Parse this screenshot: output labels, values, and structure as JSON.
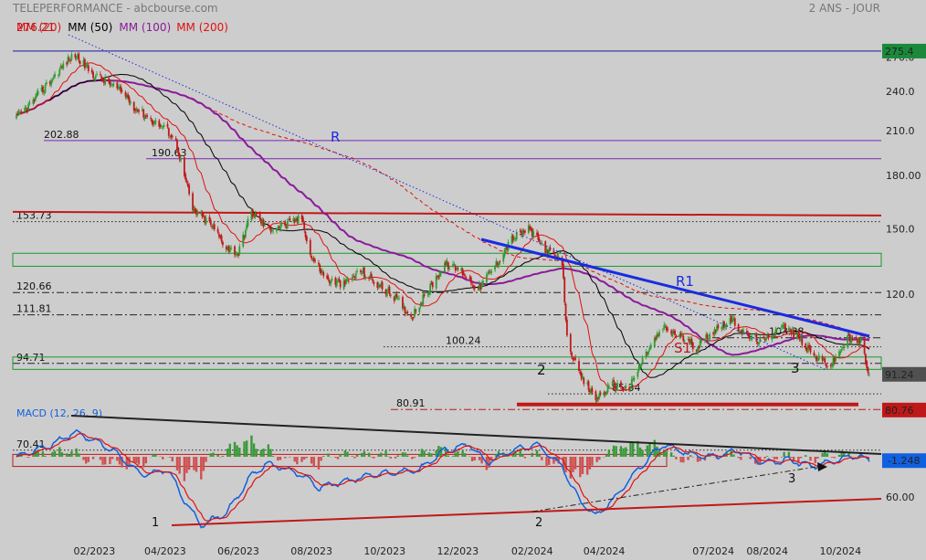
{
  "header": {
    "title": "TELEPERFORMANCE - abcbourse.com",
    "period": "2 ANS - JOUR",
    "legend": [
      {
        "label": "MM (20)",
        "color": "#e01010"
      },
      {
        "label": "MM (50)",
        "color": "#000000"
      },
      {
        "label": "MM (100)",
        "color": "#8a1a9a"
      },
      {
        "label": "MM (200)",
        "color": "#e01010"
      }
    ],
    "overlap_label": "276.21"
  },
  "colors": {
    "background": "#cdcdcd",
    "candle_up": "#2e9c2e",
    "candle_down": "#c01818",
    "ma20": "#e01010",
    "ma50": "#000000",
    "ma100": "#8a1a9a",
    "ma200": "#e01010",
    "trend": "#1a2be0",
    "support": "#c01818",
    "macd": "#1060e0",
    "signal": "#e01010",
    "hist_pos": "#3a9a3a",
    "hist_neg": "#d05050"
  },
  "chart_data": [
    {
      "type": "candlestick",
      "title": "TELEPERFORMANCE - abcbourse.com",
      "ylabel": "",
      "ylim": [
        60,
        280
      ],
      "yticks": [
        60,
        120,
        150,
        180,
        210,
        240,
        270
      ],
      "ytick_labels": [
        "60.00",
        "120.0",
        "150.0",
        "180.00",
        "210.0",
        "240.0",
        "270.0"
      ],
      "xticks": [
        "02/2023",
        "04/2023",
        "06/2023",
        "08/2023",
        "10/2023",
        "12/2023",
        "02/2024",
        "04/2024",
        "07/2024",
        "08/2024",
        "10/2024"
      ],
      "price_anchors": [
        [
          "2022-11-28",
          219
        ],
        [
          "2022-12-12",
          232
        ],
        [
          "2022-12-28",
          251
        ],
        [
          "2023-01-09",
          266
        ],
        [
          "2023-01-16",
          272
        ],
        [
          "2023-01-30",
          255
        ],
        [
          "2023-02-13",
          247
        ],
        [
          "2023-02-27",
          237
        ],
        [
          "2023-03-06",
          228
        ],
        [
          "2023-03-20",
          218
        ],
        [
          "2023-04-03",
          210
        ],
        [
          "2023-04-10",
          202
        ],
        [
          "2023-04-17",
          180
        ],
        [
          "2023-04-24",
          160
        ],
        [
          "2023-05-08",
          153
        ],
        [
          "2023-05-22",
          141
        ],
        [
          "2023-06-01",
          138
        ],
        [
          "2023-06-12",
          159
        ],
        [
          "2023-06-26",
          150
        ],
        [
          "2023-07-10",
          152
        ],
        [
          "2023-07-24",
          156
        ],
        [
          "2023-07-31",
          137
        ],
        [
          "2023-08-14",
          126
        ],
        [
          "2023-08-28",
          124
        ],
        [
          "2023-09-11",
          130
        ],
        [
          "2023-09-25",
          124
        ],
        [
          "2023-10-09",
          119
        ],
        [
          "2023-10-23",
          111
        ],
        [
          "2023-11-06",
          121
        ],
        [
          "2023-11-20",
          133
        ],
        [
          "2023-12-04",
          130
        ],
        [
          "2023-12-18",
          122
        ],
        [
          "2024-01-02",
          133
        ],
        [
          "2024-01-15",
          145
        ],
        [
          "2024-01-29",
          150
        ],
        [
          "2024-02-12",
          140
        ],
        [
          "2024-02-26",
          133
        ],
        [
          "2024-03-01",
          103
        ],
        [
          "2024-03-11",
          91
        ],
        [
          "2024-03-25",
          84
        ],
        [
          "2024-04-08",
          88
        ],
        [
          "2024-04-22",
          87
        ],
        [
          "2024-05-06",
          98
        ],
        [
          "2024-05-20",
          107
        ],
        [
          "2024-06-03",
          104
        ],
        [
          "2024-06-17",
          100
        ],
        [
          "2024-07-01",
          106
        ],
        [
          "2024-07-15",
          110
        ],
        [
          "2024-07-29",
          104
        ],
        [
          "2024-08-12",
          102
        ],
        [
          "2024-08-26",
          108
        ],
        [
          "2024-09-09",
          104
        ],
        [
          "2024-09-23",
          97
        ],
        [
          "2024-10-07",
          94
        ],
        [
          "2024-10-21",
          103
        ],
        [
          "2024-11-01",
          102
        ],
        [
          "2024-11-08",
          91.24
        ]
      ],
      "horizontal_levels": [
        {
          "label": "",
          "value": 275.4,
          "color": "#1a1aa0"
        },
        {
          "label": "202.88",
          "value": 202.88,
          "color": "#7a2ab0"
        },
        {
          "label": "190.63",
          "value": 190.63,
          "color": "#7a2ab0"
        },
        {
          "label": "153.73",
          "value": 153.73,
          "color": "#222222",
          "style": "dotted"
        },
        {
          "label": "120.66",
          "value": 120.66,
          "color": "#222222",
          "style": "dashdot"
        },
        {
          "label": "111.81",
          "value": 111.81,
          "color": "#222222",
          "style": "dashdot"
        },
        {
          "label": "100.24",
          "value": 100.24,
          "color": "#222222",
          "style": "dotted"
        },
        {
          "label": "94.71",
          "value": 94.71,
          "color": "#222222",
          "style": "dashdot"
        },
        {
          "label": "85.34",
          "value": 85.34,
          "color": "#222222",
          "style": "dotted"
        },
        {
          "label": "80.91",
          "value": 80.91,
          "color": "#c01818",
          "style": "dashdot"
        },
        {
          "label": "70.41",
          "value": 70.41,
          "color": "#222222",
          "style": "dotted"
        },
        {
          "label": "103.38",
          "value": 103.38,
          "color": "#222222",
          "style": "dashdot"
        }
      ],
      "resistance_line": {
        "value": 158,
        "color": "#c01818"
      },
      "annotations": [
        {
          "text": "R",
          "color": "#1a2be0"
        },
        {
          "text": "R1",
          "color": "#1a2be0"
        },
        {
          "text": "S1",
          "color": "#c01818"
        },
        {
          "text": "2",
          "color": "#111111"
        },
        {
          "text": "3",
          "color": "#111111"
        }
      ],
      "price_tags": [
        {
          "text": "275.4",
          "bg": "#1a8a3a",
          "fg": "#ffffff"
        },
        {
          "text": "91.24",
          "bg": "#505050",
          "fg": "#ffffff"
        },
        {
          "text": "80.76",
          "bg": "#c01818",
          "fg": "#ffffff"
        }
      ]
    },
    {
      "type": "line",
      "title": "MACD (12, 26, 9)",
      "series": [
        {
          "name": "",
          "color": "#1060e0"
        },
        {
          "name": "",
          "color": "#e01010"
        }
      ],
      "macd_anchors": [
        [
          "2022-11-28",
          0
        ],
        [
          "2022-12-28",
          4
        ],
        [
          "2023-01-16",
          8
        ],
        [
          "2023-02-13",
          3
        ],
        [
          "2023-03-13",
          -6
        ],
        [
          "2023-04-03",
          -4
        ],
        [
          "2023-04-17",
          -14
        ],
        [
          "2023-05-01",
          -22
        ],
        [
          "2023-05-22",
          -18
        ],
        [
          "2023-06-12",
          -6
        ],
        [
          "2023-06-26",
          -2
        ],
        [
          "2023-07-24",
          -6
        ],
        [
          "2023-08-07",
          -10
        ],
        [
          "2023-08-28",
          -8
        ],
        [
          "2023-09-18",
          -6
        ],
        [
          "2023-10-09",
          -5
        ],
        [
          "2023-10-30",
          -4
        ],
        [
          "2023-11-20",
          2
        ],
        [
          "2023-12-11",
          4
        ],
        [
          "2023-12-25",
          -2
        ],
        [
          "2024-01-15",
          2
        ],
        [
          "2024-02-05",
          4
        ],
        [
          "2024-02-26",
          -3
        ],
        [
          "2024-03-11",
          -14
        ],
        [
          "2024-03-25",
          -19
        ],
        [
          "2024-04-08",
          -14
        ],
        [
          "2024-04-29",
          -4
        ],
        [
          "2024-05-20",
          4
        ],
        [
          "2024-06-10",
          1
        ],
        [
          "2024-07-01",
          0
        ],
        [
          "2024-07-22",
          2
        ],
        [
          "2024-08-12",
          -2
        ],
        [
          "2024-09-02",
          -1
        ],
        [
          "2024-09-23",
          -3
        ],
        [
          "2024-10-14",
          -1
        ],
        [
          "2024-10-28",
          0.5
        ],
        [
          "2024-11-08",
          -1.248
        ]
      ],
      "signal_tag": {
        "text": "-1.248",
        "bg": "#1060e0",
        "fg": "#ffffff"
      },
      "annotations": [
        {
          "text": "1",
          "color": "#111111"
        },
        {
          "text": "2",
          "color": "#111111"
        },
        {
          "text": "3",
          "color": "#111111"
        }
      ]
    }
  ]
}
